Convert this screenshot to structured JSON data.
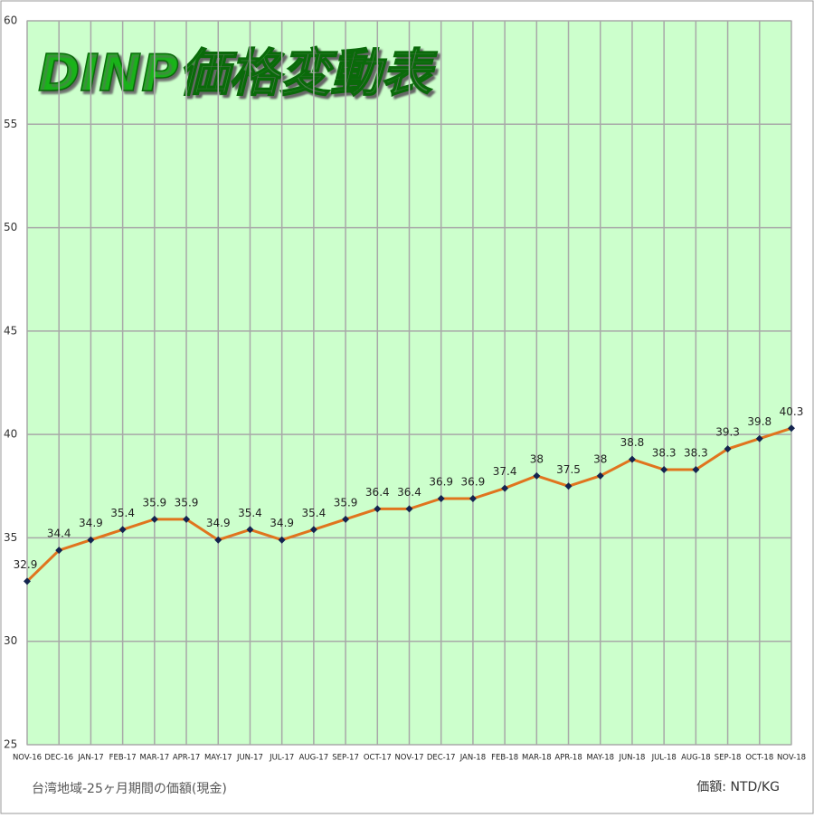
{
  "chart_data": {
    "type": "line",
    "title": "DINP価格変動表",
    "categories": [
      "NOV-16",
      "DEC-16",
      "JAN-17",
      "FEB-17",
      "MAR-17",
      "APR-17",
      "MAY-17",
      "JUN-17",
      "JUL-17",
      "AUG-17",
      "SEP-17",
      "OCT-17",
      "NOV-17",
      "DEC-17",
      "JAN-18",
      "FEB-18",
      "MAR-18",
      "APR-18",
      "MAY-18",
      "JUN-18",
      "JUL-18",
      "AUG-18",
      "SEP-18",
      "OCT-18",
      "NOV-18"
    ],
    "values": [
      32.9,
      34.4,
      34.9,
      35.4,
      35.9,
      35.9,
      34.9,
      35.4,
      34.9,
      35.4,
      35.9,
      36.4,
      36.4,
      36.9,
      36.9,
      37.4,
      38,
      37.5,
      38,
      38.8,
      38.3,
      38.3,
      39.3,
      39.8,
      40.3
    ],
    "color": "#e0741e",
    "marker_color": "#14244f",
    "ylim": [
      25,
      60
    ],
    "yticks": [
      25,
      30,
      35,
      40,
      45,
      50,
      55,
      60
    ],
    "grid": true,
    "footnote_left": "台湾地域-25ヶ月期間の価額(現金)",
    "footnote_right": "価額: NTD/KG"
  }
}
